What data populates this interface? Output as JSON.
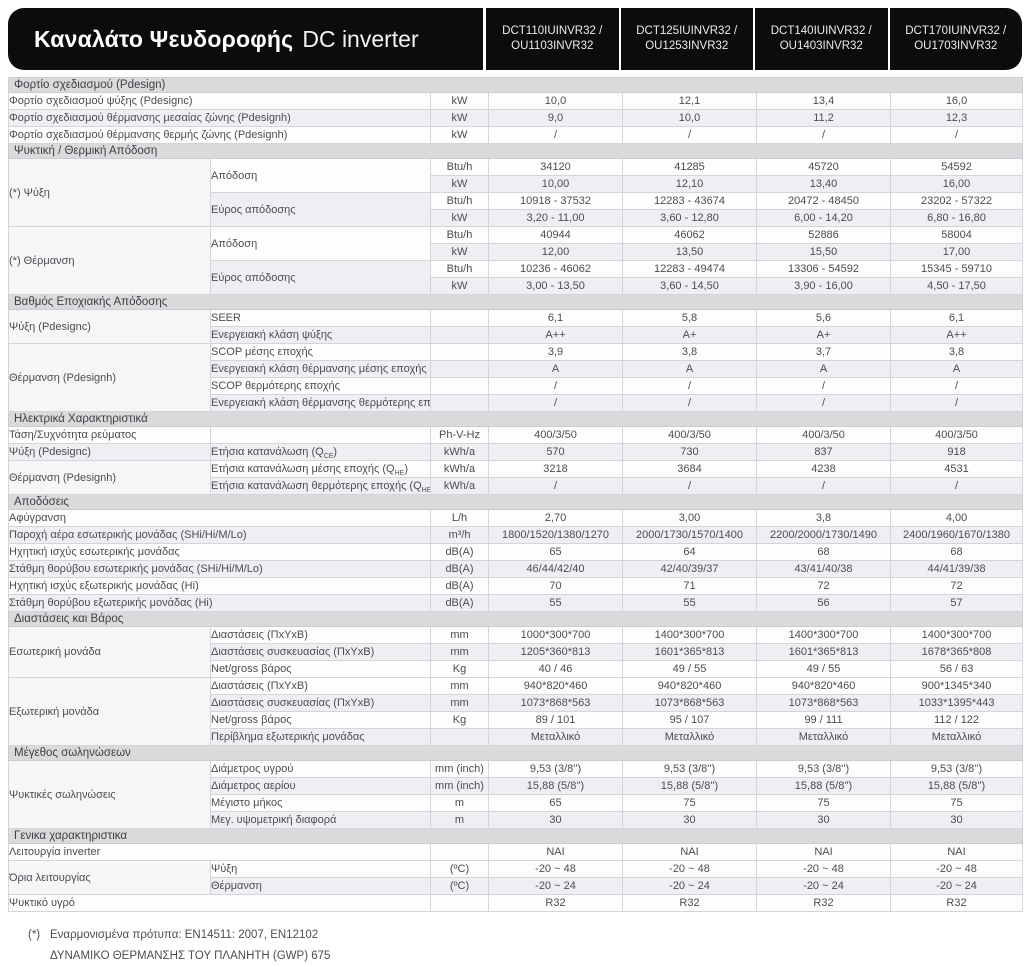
{
  "header": {
    "title_bold": "Καναλάτο Ψευδοροφής",
    "title_light": "DC inverter",
    "models": [
      {
        "line1": "DCT110IUINVR32 /",
        "line2": "OU1103INVR32"
      },
      {
        "line1": "DCT125IUINVR32 /",
        "line2": "OU1253INVR32"
      },
      {
        "line1": "DCT140IUINVR32 /",
        "line2": "OU1403INVR32"
      },
      {
        "line1": "DCT170IUINVR32 /",
        "line2": "OU1703INVR32"
      }
    ]
  },
  "colors": {
    "header_bg": "#0c0c0d",
    "section_bg": "#d9dadc",
    "row_alt_bg": "#edeff2",
    "border": "#d3d6d9",
    "text": "#4b4d50"
  },
  "table": {
    "sections": [
      {
        "title": "Φορτίο σχεδιασμού (Pdesign)",
        "rows": [
          {
            "full_label": "Φορτίο σχεδιασμού ψύξης (Pdesignc)",
            "unit": "kW",
            "values": [
              "10,0",
              "12,1",
              "13,4",
              "16,0"
            ]
          },
          {
            "full_label": "Φορτίο σχεδιασμού θέρμανσης μεσαίας ζώνης (Pdesignh)",
            "unit": "kW",
            "values": [
              "9,0",
              "10,0",
              "11,2",
              "12,3"
            ]
          },
          {
            "full_label": "Φορτίο σχεδιασμού θέρμανσης θερμής ζώνης (Pdesignh)",
            "unit": "kW",
            "values": [
              "/",
              "/",
              "/",
              "/"
            ]
          }
        ]
      },
      {
        "title": "Ψυκτική / Θερμική Απόδοση",
        "rows": [
          {
            "group": {
              "text": "(*) Ψύξη",
              "rowspan": 4
            },
            "sub": {
              "text": "Απόδοση",
              "rowspan": 2
            },
            "unit": "Btu/h",
            "values": [
              "34120",
              "41285",
              "45720",
              "54592"
            ]
          },
          {
            "unit": "kW",
            "values": [
              "10,00",
              "12,10",
              "13,40",
              "16,00"
            ]
          },
          {
            "sub": {
              "text": "Εύρος απόδοσης",
              "rowspan": 2
            },
            "unit": "Btu/h",
            "values": [
              "10918 - 37532",
              "12283 - 43674",
              "20472 - 48450",
              "23202 - 57322"
            ]
          },
          {
            "unit": "kW",
            "values": [
              "3,20 - 11,00",
              "3,60 - 12,80",
              "6,00 - 14,20",
              "6,80 - 16,80"
            ]
          },
          {
            "group": {
              "text": "(*) Θέρμανση",
              "rowspan": 4
            },
            "sub": {
              "text": "Απόδοση",
              "rowspan": 2
            },
            "unit": "Btu/h",
            "values": [
              "40944",
              "46062",
              "52886",
              "58004"
            ]
          },
          {
            "unit": "kW",
            "values": [
              "12,00",
              "13,50",
              "15,50",
              "17,00"
            ]
          },
          {
            "sub": {
              "text": "Εύρος απόδοσης",
              "rowspan": 2
            },
            "unit": "Btu/h",
            "values": [
              "10236 - 46062",
              "12283 - 49474",
              "13306 - 54592",
              "15345 - 59710"
            ]
          },
          {
            "unit": "kW",
            "values": [
              "3,00 - 13,50",
              "3,60 - 14,50",
              "3,90 - 16,00",
              "4,50 - 17,50"
            ]
          }
        ]
      },
      {
        "title": "Βαθμός Εποχιακής Απόδοσης",
        "rows": [
          {
            "group": {
              "text": "Ψύξη (Pdesignc)",
              "rowspan": 2
            },
            "sub": {
              "text": "SEER",
              "rowspan": 1
            },
            "unit": "",
            "values": [
              "6,1",
              "5,8",
              "5,6",
              "6,1"
            ]
          },
          {
            "sub": {
              "text": "Ενεργειακή κλάση ψύξης",
              "rowspan": 1
            },
            "unit": "",
            "values": [
              "A++",
              "A+",
              "A+",
              "A++"
            ]
          },
          {
            "group": {
              "text": "Θέρμανση (Pdesignh)",
              "rowspan": 4
            },
            "sub": {
              "text": "SCOP μέσης εποχής",
              "rowspan": 1
            },
            "unit": "",
            "values": [
              "3,9",
              "3,8",
              "3,7",
              "3,8"
            ]
          },
          {
            "sub": {
              "text": "Ενεργειακή κλάση θέρμανσης μέσης εποχής",
              "rowspan": 1
            },
            "unit": "",
            "values": [
              "A",
              "A",
              "A",
              "A"
            ]
          },
          {
            "sub": {
              "text": "SCOP θερμότερης εποχής",
              "rowspan": 1
            },
            "unit": "",
            "values": [
              "/",
              "/",
              "/",
              "/"
            ]
          },
          {
            "sub": {
              "text": "Ενεργειακή κλάση θέρμανσης θερμότερης εποχής",
              "rowspan": 1
            },
            "unit": "",
            "values": [
              "/",
              "/",
              "/",
              "/"
            ]
          }
        ]
      },
      {
        "title": "Ηλεκτρικά Χαρακτηριστικά",
        "rows": [
          {
            "group": {
              "text": "Τάση/Συχνότητα ρεύματος",
              "rowspan": 1
            },
            "sub": {
              "text": "",
              "rowspan": 1
            },
            "unit": "Ph-V-Hz",
            "values": [
              "400/3/50",
              "400/3/50",
              "400/3/50",
              "400/3/50"
            ]
          },
          {
            "group": {
              "text": "Ψύξη (Pdesignc)",
              "rowspan": 1
            },
            "sub": {
              "text": "Ετήσια κατανάλωση (Q~CE~)",
              "rowspan": 1
            },
            "unit": "kWh/a",
            "values": [
              "570",
              "730",
              "837",
              "918"
            ]
          },
          {
            "group": {
              "text": "Θέρμανση  (Pdesignh)",
              "rowspan": 2
            },
            "sub": {
              "text": "Ετήσια κατανάλωση μέσης εποχής (Q~HE~)",
              "rowspan": 1
            },
            "unit": "kWh/a",
            "values": [
              "3218",
              "3684",
              "4238",
              "4531"
            ]
          },
          {
            "sub": {
              "text": "Ετήσια κατανάλωση θερμότερης εποχής (Q~HE~)",
              "rowspan": 1
            },
            "unit": "kWh/a",
            "values": [
              "/",
              "/",
              "/",
              "/"
            ]
          }
        ]
      },
      {
        "title": "Αποδόσεις",
        "rows": [
          {
            "full_label": "Αφύγρανση",
            "unit": "L/h",
            "values": [
              "2,70",
              "3,00",
              "3,8",
              "4,00"
            ]
          },
          {
            "full_label": "Παροχή αέρα εσωτερικής μονάδας (SHi/Hi/M/Lo)",
            "unit": "m³/h",
            "values": [
              "1800/1520/1380/1270",
              "2000/1730/1570/1400",
              "2200/2000/1730/1490",
              "2400/1960/1670/1380"
            ]
          },
          {
            "full_label": "Ηχητική ισχύς εσωτερικής μονάδας",
            "unit": "dB(A)",
            "values": [
              "65",
              "64",
              "68",
              "68"
            ]
          },
          {
            "full_label": "Στάθμη θορύβου εσωτερικής μονάδας  (SHi/Hi/M/Lo)",
            "unit": "dB(A)",
            "values": [
              "46/44/42/40",
              "42/40/39/37",
              "43/41/40/38",
              "44/41/39/38"
            ]
          },
          {
            "full_label": "Ηχητική ισχύς εξωτερικής μονάδας (Hi)",
            "unit": "dB(A)",
            "values": [
              "70",
              "71",
              "72",
              "72"
            ]
          },
          {
            "full_label": "Στάθμη θορύβου εξωτερικής μονάδας (Hi)",
            "unit": "dB(A)",
            "values": [
              "55",
              "55",
              "56",
              "57"
            ]
          }
        ]
      },
      {
        "title": "Διαστάσεις και Βάρος",
        "rows": [
          {
            "group": {
              "text": "Εσωτερική μονάδα",
              "rowspan": 3
            },
            "sub": {
              "text": "Διαστάσεις (ΠxΥxΒ)",
              "rowspan": 1
            },
            "unit": "mm",
            "values": [
              "1000*300*700",
              "1400*300*700",
              "1400*300*700",
              "1400*300*700"
            ]
          },
          {
            "sub": {
              "text": "Διαστάσεις συσκευασίας (ΠxΥxΒ)",
              "rowspan": 1
            },
            "unit": "mm",
            "values": [
              "1205*360*813",
              "1601*365*813",
              "1601*365*813",
              "1678*365*808"
            ]
          },
          {
            "sub": {
              "text": "Net/gross βάρος",
              "rowspan": 1
            },
            "unit": "Kg",
            "values": [
              "40 / 46",
              "49 / 55",
              "49 / 55",
              "56 / 63"
            ]
          },
          {
            "group": {
              "text": "Εξωτερική μονάδα",
              "rowspan": 4
            },
            "sub": {
              "text": "Διαστάσεις (ΠxΥxΒ)",
              "rowspan": 1
            },
            "unit": "mm",
            "values": [
              "940*820*460",
              "940*820*460",
              "940*820*460",
              "900*1345*340"
            ]
          },
          {
            "sub": {
              "text": "Διαστάσεις συσκευασίας (ΠxΥxΒ)",
              "rowspan": 1
            },
            "unit": "mm",
            "values": [
              "1073*868*563",
              "1073*868*563",
              "1073*868*563",
              "1033*1395*443"
            ]
          },
          {
            "sub": {
              "text": "Net/gross βάρος",
              "rowspan": 1
            },
            "unit": "Kg",
            "values": [
              "89 / 101",
              "95 / 107",
              "99 / 111",
              "112 / 122"
            ]
          },
          {
            "sub": {
              "text": "Περίβλημα εξωτερικής μονάδας",
              "rowspan": 1
            },
            "unit": "",
            "values": [
              "Μεταλλικό",
              "Μεταλλικό",
              "Μεταλλικό",
              "Μεταλλικό"
            ]
          }
        ]
      },
      {
        "title": "Μέγεθος σωληνώσεων",
        "rows": [
          {
            "group": {
              "text": "Ψυκτικές σωληνώσεις",
              "rowspan": 4
            },
            "sub": {
              "text": "Διάμετρος υγρού",
              "rowspan": 1
            },
            "unit": "mm (inch)",
            "values": [
              "9,53 (3/8'')",
              "9,53 (3/8'')",
              "9,53 (3/8'')",
              "9,53 (3/8'')"
            ]
          },
          {
            "sub": {
              "text": "Διάμετρος αερίου",
              "rowspan": 1
            },
            "unit": "mm (inch)",
            "values": [
              "15,88 (5/8'')",
              "15,88 (5/8'')",
              "15,88 (5/8'')",
              "15,88 (5/8'')"
            ]
          },
          {
            "sub": {
              "text": "Μέγιστο μήκος",
              "rowspan": 1
            },
            "unit": "m",
            "values": [
              "65",
              "75",
              "75",
              "75"
            ]
          },
          {
            "sub": {
              "text": "Μεγ. υψομετρική διαφορά",
              "rowspan": 1
            },
            "unit": "m",
            "values": [
              "30",
              "30",
              "30",
              "30"
            ]
          }
        ]
      },
      {
        "title": "Γενικα χαρακτηριστικα",
        "rows": [
          {
            "full_label": "Λειτουργία inverter",
            "unit": "",
            "values": [
              "ΝΑΙ",
              "ΝΑΙ",
              "ΝΑΙ",
              "ΝΑΙ"
            ]
          },
          {
            "group": {
              "text": "Όρια λειτουργίας",
              "rowspan": 2
            },
            "sub": {
              "text": "Ψύξη",
              "rowspan": 1
            },
            "unit": "(ºC)",
            "values": [
              "-20 ~ 48",
              "-20 ~ 48",
              "-20 ~ 48",
              "-20 ~ 48"
            ]
          },
          {
            "sub": {
              "text": "Θέρμανση",
              "rowspan": 1
            },
            "unit": "(ºC)",
            "values": [
              "-20 ~ 24",
              "-20 ~ 24",
              "-20 ~ 24",
              "-20 ~ 24"
            ]
          },
          {
            "full_label": "Ψυκτικό υγρό",
            "unit": "",
            "values": [
              "R32",
              "R32",
              "R32",
              "R32"
            ]
          }
        ]
      }
    ]
  },
  "footnote": {
    "marker": "(*)",
    "line1": "Εναρμονισμένα πρότυπα: EN14511: 2007, EN12102",
    "line2": "ΔΥΝΑΜΙΚΟ ΘΕΡΜΑΝΣΗΣ ΤΟΥ ΠΛΑΝΗΤΗ (GWP) 675"
  }
}
